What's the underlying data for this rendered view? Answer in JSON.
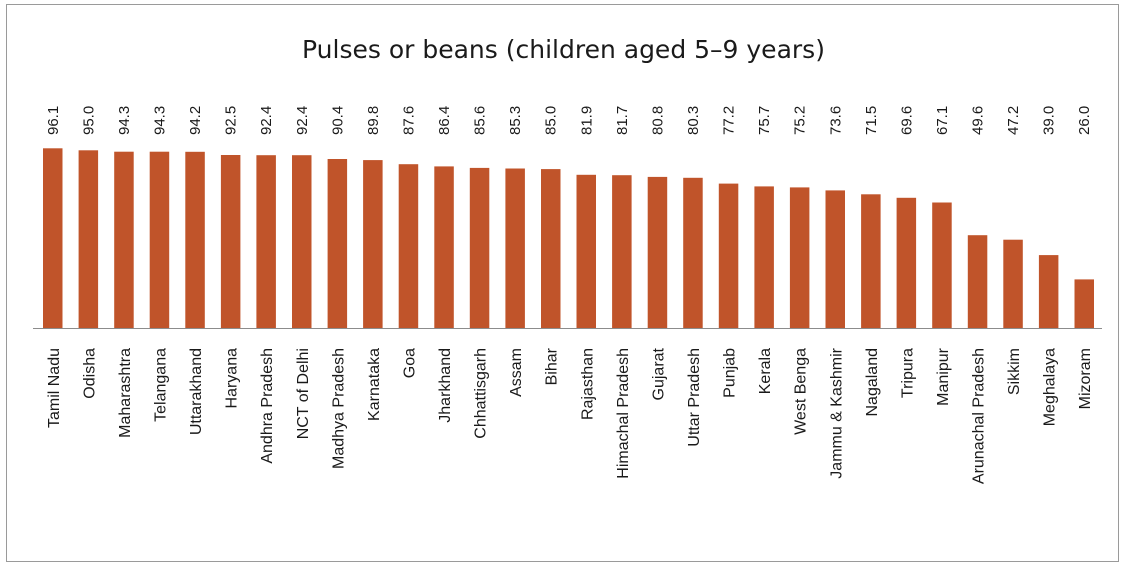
{
  "chart_data": {
    "type": "bar",
    "title": "Pulses or beans (children aged 5–9 years)",
    "xlabel": "",
    "ylabel": "",
    "ylim": [
      0,
      100
    ],
    "grid": false,
    "bar_color": "#c0542a",
    "categories": [
      "Tamil Nadu",
      "Odisha",
      "Maharashtra",
      "Telangana",
      "Uttarakhand",
      "Haryana",
      "Andhra Pradesh",
      "NCT of Delhi",
      "Madhya Pradesh",
      "Karnataka",
      "Goa",
      "Jharkhand",
      "Chhattisgarh",
      "Assam",
      "Bihar",
      "Rajasthan",
      "Himachal Pradesh",
      "Gujarat",
      "Uttar Pradesh",
      "Punjab",
      "Kerala",
      "West Benga",
      "Jammu & Kashmir",
      "Nagaland",
      "Tripura",
      "Manipur",
      "Arunachal Pradesh",
      "Sikkim",
      "Meghalaya",
      "Mizoram"
    ],
    "values": [
      96.1,
      95.0,
      94.3,
      94.3,
      94.2,
      92.5,
      92.4,
      92.4,
      90.4,
      89.8,
      87.6,
      86.4,
      85.6,
      85.3,
      85.0,
      81.9,
      81.7,
      80.8,
      80.3,
      77.2,
      75.7,
      75.2,
      73.6,
      71.5,
      69.6,
      67.1,
      49.6,
      47.2,
      39.0,
      26.0
    ],
    "value_labels": [
      "96.1",
      "95.0",
      "94.3",
      "94.3",
      "94.2",
      "92.5",
      "92.4",
      "92.4",
      "90.4",
      "89.8",
      "87.6",
      "86.4",
      "85.6",
      "85.3",
      "85.0",
      "81.9",
      "81.7",
      "80.8",
      "80.3",
      "77.2",
      "75.7",
      "75.2",
      "73.6",
      "71.5",
      "69.6",
      "67.1",
      "49.6",
      "47.2",
      "39.0",
      "26.0"
    ]
  }
}
